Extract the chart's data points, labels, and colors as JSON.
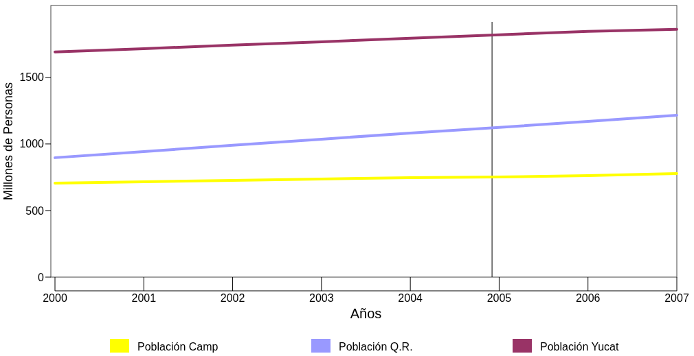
{
  "chart_data": {
    "type": "line",
    "xlabel": "Años",
    "ylabel": "Millones de Personas",
    "x": [
      2000,
      2001,
      2002,
      2003,
      2004,
      2005,
      2006,
      2007
    ],
    "series": [
      {
        "name": "Población Camp",
        "color": "#ffff00",
        "values": [
          706,
          716,
          727,
          737,
          747,
          752,
          763,
          778
        ]
      },
      {
        "name": "Población Q.R.",
        "color": "#9999ff",
        "values": [
          897,
          943,
          990,
          1036,
          1082,
          1124,
          1170,
          1216
        ]
      },
      {
        "name": "Población Yucat",
        "color": "#993366",
        "values": [
          1691,
          1716,
          1742,
          1767,
          1794,
          1820,
          1845,
          1861
        ]
      }
    ],
    "xlim": [
      2000,
      2007
    ],
    "xticks": [
      2000,
      2001,
      2002,
      2003,
      2004,
      2005,
      2006,
      2007
    ],
    "ylim": [
      0,
      2040
    ],
    "yticks": [
      0,
      500,
      1000,
      1500
    ],
    "ref_lines": [
      {
        "axis": "x",
        "value": 2004.92,
        "color": "#000000"
      }
    ],
    "legend": "bottom",
    "grid": false,
    "marker": "none",
    "line_style": "solid"
  }
}
